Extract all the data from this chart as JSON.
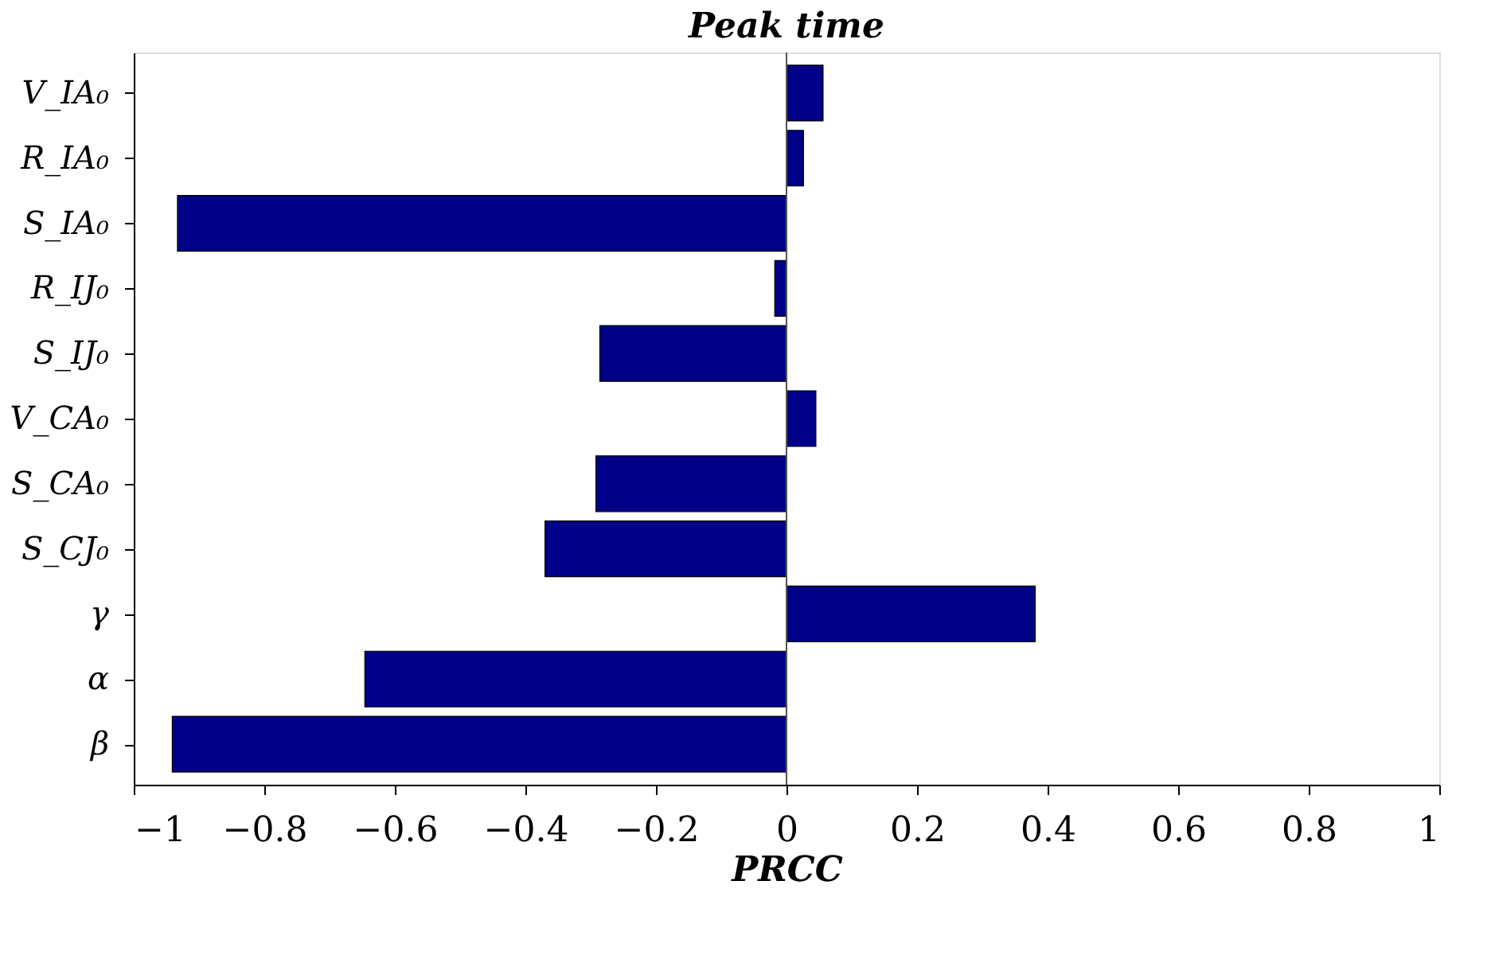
{
  "chart_data": {
    "type": "bar",
    "orientation": "horizontal",
    "title": "Peak time",
    "xlabel": "PRCC",
    "categories": [
      "V_IA₀",
      "R_IA₀",
      "S_IA₀",
      "R_IJ₀",
      "S_IJ₀",
      "V_CA₀",
      "S_CA₀",
      "S_CJ₀",
      "γ",
      "α",
      "β"
    ],
    "values": [
      0.056,
      0.026,
      -0.933,
      -0.018,
      -0.286,
      0.045,
      -0.292,
      -0.37,
      0.381,
      -0.646,
      -0.941
    ],
    "color": "#000088",
    "xlim": [
      -1,
      1
    ],
    "xticks": [
      -1,
      -0.8,
      -0.6,
      -0.4,
      -0.2,
      0,
      0.2,
      0.4,
      0.6,
      0.8,
      1
    ],
    "ref_lines": [
      {
        "axis": "x",
        "value": 0,
        "color": "#555555"
      }
    ],
    "grid": false
  }
}
